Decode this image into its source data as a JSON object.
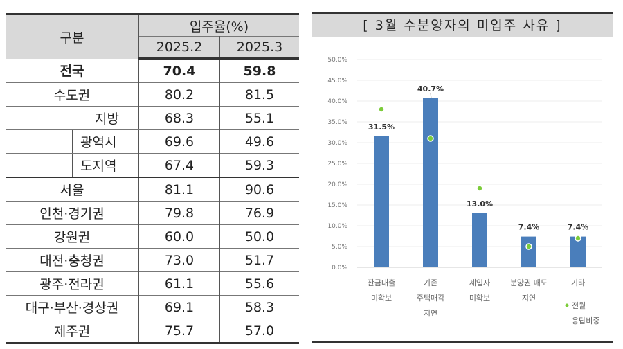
{
  "table": {
    "header_col": "구분",
    "header_group": "입주율(%)",
    "periods": [
      "2025.2",
      "2025.3"
    ],
    "rows": [
      {
        "label": "전국",
        "v": [
          "70.4",
          "59.8"
        ],
        "bold": true
      },
      {
        "label": "수도권",
        "v": [
          "80.2",
          "81.5"
        ]
      },
      {
        "label": "지방",
        "v": [
          "68.3",
          "55.1"
        ]
      },
      {
        "label": "광역시",
        "v": [
          "69.6",
          "49.6"
        ]
      },
      {
        "label": "도지역",
        "v": [
          "67.4",
          "59.3"
        ]
      },
      {
        "label": "서울",
        "v": [
          "81.1",
          "90.6"
        ]
      },
      {
        "label": "인천·경기권",
        "v": [
          "79.8",
          "76.9"
        ]
      },
      {
        "label": "강원권",
        "v": [
          "60.0",
          "50.0"
        ]
      },
      {
        "label": "대전·충청권",
        "v": [
          "73.0",
          "51.7"
        ]
      },
      {
        "label": "광주·전라권",
        "v": [
          "61.1",
          "55.6"
        ]
      },
      {
        "label": "대구·부산·경상권",
        "v": [
          "69.1",
          "58.3"
        ]
      },
      {
        "label": "제주권",
        "v": [
          "75.7",
          "57.0"
        ]
      }
    ]
  },
  "chart_data": {
    "type": "bar",
    "title": "[ 3월  수분양자의  미입주  사유 ]",
    "categories": [
      [
        "잔금대출",
        "미확보"
      ],
      [
        "기존",
        "주택매각",
        "지연"
      ],
      [
        "세입자",
        "미확보"
      ],
      [
        "분양권 매도",
        "지연"
      ],
      [
        "기타"
      ]
    ],
    "series": [
      {
        "values": [
          31.5,
          40.7,
          13.0,
          7.4,
          7.4
        ],
        "labels": [
          "31.5%",
          "40.7%",
          "13.0%",
          "7.4%",
          "7.4%"
        ],
        "color": "#4a7ebb"
      },
      {
        "name": "전월 응답비중",
        "legend_lines": [
          "전월",
          "응답비중"
        ],
        "type": "scatter",
        "values": [
          38.0,
          31.0,
          19.0,
          5.0,
          7.0
        ],
        "color": "#7ccc3a"
      }
    ],
    "yticks": [
      "0.0%",
      "5.0%",
      "10.0%",
      "15.0%",
      "20.0%",
      "25.0%",
      "30.0%",
      "35.0%",
      "40.0%",
      "45.0%",
      "50.0%"
    ],
    "ylim": [
      0,
      50
    ],
    "grid": true,
    "legend": "bottom-right"
  }
}
